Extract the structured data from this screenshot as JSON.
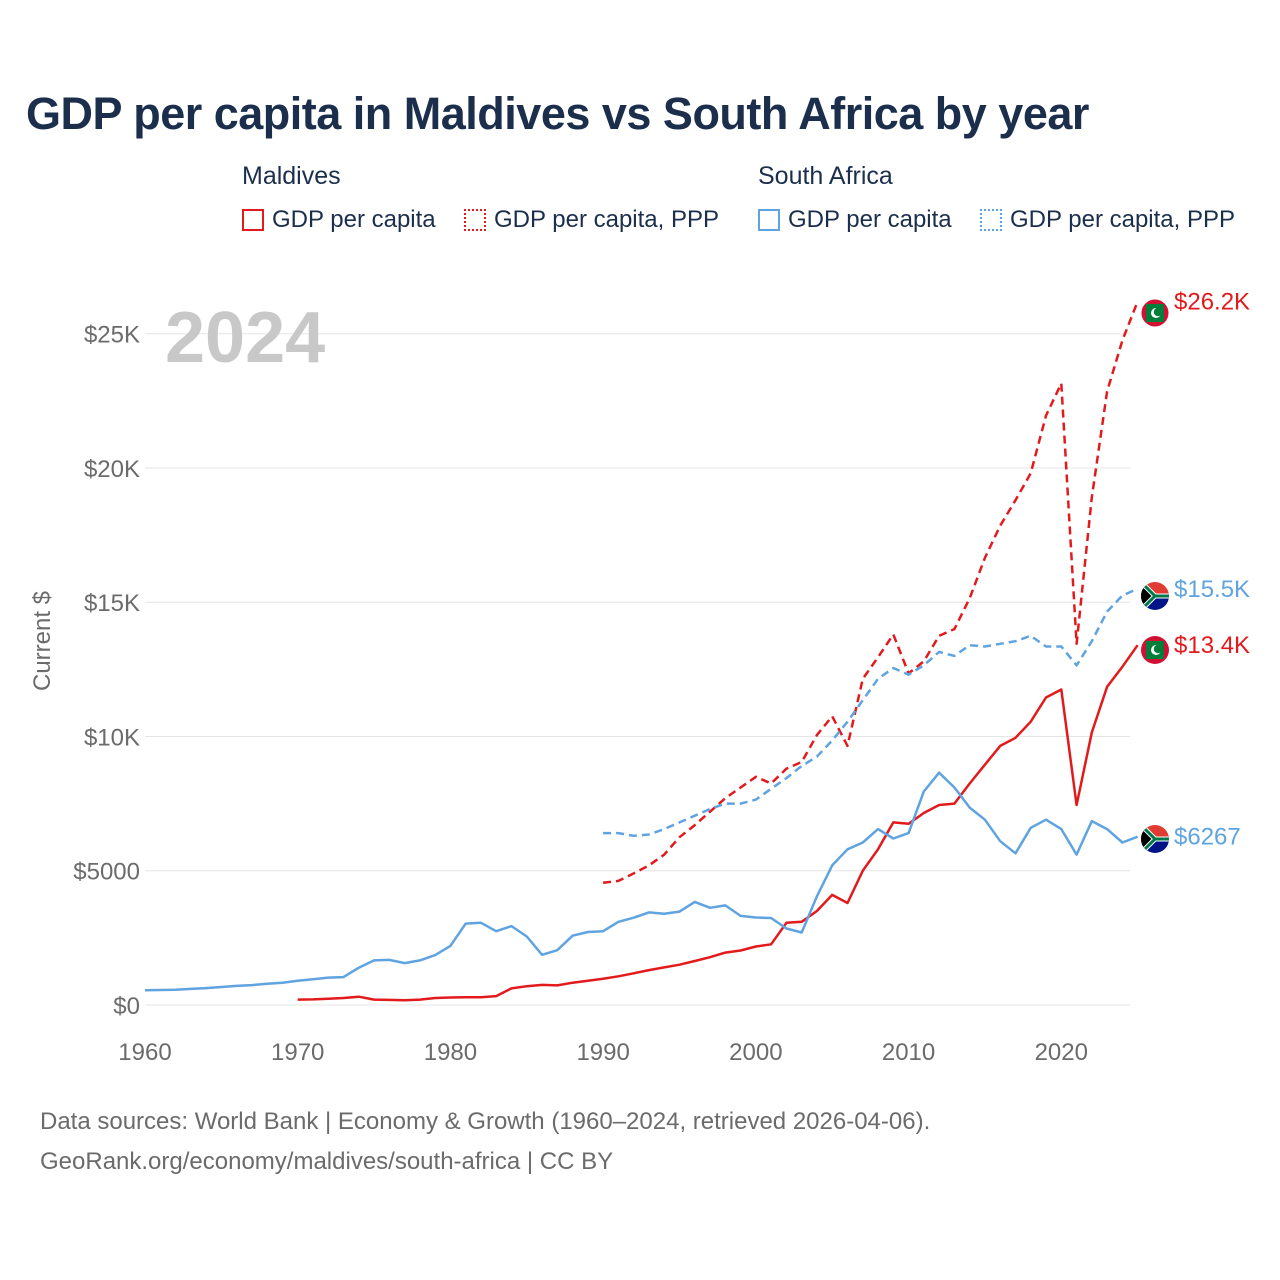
{
  "title": "GDP per capita in Maldives vs South Africa by year",
  "legend": {
    "groups": [
      {
        "name": "Maldives",
        "items": [
          {
            "label": "GDP per capita"
          },
          {
            "label": "GDP per capita, PPP"
          }
        ]
      },
      {
        "name": "South Africa",
        "items": [
          {
            "label": "GDP per capita"
          },
          {
            "label": "GDP per capita, PPP"
          }
        ]
      }
    ]
  },
  "colors": {
    "maldives": "#e31a1c",
    "south_africa": "#5fa3e0",
    "grid": "#e6e6e6",
    "axis_text": "#6b6b6b",
    "year_watermark": "#c8c8c8"
  },
  "year_watermark": "2024",
  "footer": {
    "line1": "Data sources: World Bank | Economy & Growth (1960–2024, retrieved 2026-04-06).",
    "line2": "GeoRank.org/economy/maldives/south-africa | CC BY"
  },
  "chart_data": {
    "type": "line",
    "title": "GDP per capita in Maldives vs South Africa by year",
    "xlabel": "",
    "ylabel": "Current $",
    "xlim": [
      1960,
      2024
    ],
    "ylim": [
      0,
      27000
    ],
    "x_ticks": [
      1960,
      1970,
      1980,
      1990,
      2000,
      2010,
      2020
    ],
    "y_ticks": [
      {
        "value": 0,
        "label": "$0"
      },
      {
        "value": 5000,
        "label": "$5000"
      },
      {
        "value": 10000,
        "label": "$10K"
      },
      {
        "value": 15000,
        "label": "$15K"
      },
      {
        "value": 20000,
        "label": "$20K"
      },
      {
        "value": 25000,
        "label": "$25K"
      }
    ],
    "grid": true,
    "series": [
      {
        "name": "Maldives GDP per capita",
        "country": "Maldives",
        "style": "solid",
        "end_label": "$13.4K",
        "points": [
          [
            1970,
            200
          ],
          [
            1971,
            210
          ],
          [
            1972,
            230
          ],
          [
            1973,
            260
          ],
          [
            1974,
            310
          ],
          [
            1975,
            200
          ],
          [
            1976,
            190
          ],
          [
            1977,
            180
          ],
          [
            1978,
            200
          ],
          [
            1979,
            260
          ],
          [
            1980,
            280
          ],
          [
            1981,
            290
          ],
          [
            1982,
            290
          ],
          [
            1983,
            330
          ],
          [
            1984,
            620
          ],
          [
            1985,
            700
          ],
          [
            1986,
            750
          ],
          [
            1987,
            730
          ],
          [
            1988,
            830
          ],
          [
            1989,
            900
          ],
          [
            1990,
            980
          ],
          [
            1991,
            1070
          ],
          [
            1992,
            1180
          ],
          [
            1993,
            1300
          ],
          [
            1994,
            1400
          ],
          [
            1995,
            1500
          ],
          [
            1996,
            1640
          ],
          [
            1997,
            1780
          ],
          [
            1998,
            1950
          ],
          [
            1999,
            2030
          ],
          [
            2000,
            2180
          ],
          [
            2001,
            2260
          ],
          [
            2002,
            3060
          ],
          [
            2003,
            3100
          ],
          [
            2004,
            3500
          ],
          [
            2005,
            4100
          ],
          [
            2006,
            3800
          ],
          [
            2007,
            5000
          ],
          [
            2008,
            5800
          ],
          [
            2009,
            6800
          ],
          [
            2010,
            6750
          ],
          [
            2011,
            7150
          ],
          [
            2012,
            7450
          ],
          [
            2013,
            7500
          ],
          [
            2014,
            8250
          ],
          [
            2015,
            8950
          ],
          [
            2016,
            9650
          ],
          [
            2017,
            9950
          ],
          [
            2018,
            10550
          ],
          [
            2019,
            11450
          ],
          [
            2020,
            11750
          ],
          [
            2021,
            7450
          ],
          [
            2022,
            10150
          ],
          [
            2023,
            11850
          ],
          [
            2024,
            12600
          ],
          [
            2025,
            13400
          ]
        ]
      },
      {
        "name": "Maldives GDP per capita, PPP",
        "country": "Maldives",
        "style": "dashed",
        "end_label": "$26.2K",
        "points": [
          [
            1990,
            4550
          ],
          [
            1991,
            4620
          ],
          [
            1992,
            4900
          ],
          [
            1993,
            5200
          ],
          [
            1994,
            5600
          ],
          [
            1995,
            6250
          ],
          [
            1996,
            6700
          ],
          [
            1997,
            7200
          ],
          [
            1998,
            7700
          ],
          [
            1999,
            8100
          ],
          [
            2000,
            8500
          ],
          [
            2001,
            8250
          ],
          [
            2002,
            8800
          ],
          [
            2003,
            9050
          ],
          [
            2004,
            10050
          ],
          [
            2005,
            10750
          ],
          [
            2006,
            9650
          ],
          [
            2007,
            12150
          ],
          [
            2008,
            12950
          ],
          [
            2009,
            13800
          ],
          [
            2010,
            12350
          ],
          [
            2011,
            12800
          ],
          [
            2012,
            13750
          ],
          [
            2013,
            14000
          ],
          [
            2014,
            15150
          ],
          [
            2015,
            16650
          ],
          [
            2016,
            17850
          ],
          [
            2017,
            18800
          ],
          [
            2018,
            19800
          ],
          [
            2019,
            21950
          ],
          [
            2020,
            23150
          ],
          [
            2021,
            13450
          ],
          [
            2022,
            18900
          ],
          [
            2023,
            22850
          ],
          [
            2024,
            24750
          ],
          [
            2025,
            26200
          ]
        ]
      },
      {
        "name": "South Africa GDP per capita",
        "country": "South Africa",
        "style": "solid",
        "end_label": "$6267",
        "points": [
          [
            1960,
            550
          ],
          [
            1961,
            560
          ],
          [
            1962,
            570
          ],
          [
            1963,
            600
          ],
          [
            1964,
            630
          ],
          [
            1965,
            670
          ],
          [
            1966,
            710
          ],
          [
            1967,
            740
          ],
          [
            1968,
            790
          ],
          [
            1969,
            830
          ],
          [
            1970,
            900
          ],
          [
            1971,
            960
          ],
          [
            1972,
            1020
          ],
          [
            1973,
            1040
          ],
          [
            1974,
            1390
          ],
          [
            1975,
            1660
          ],
          [
            1976,
            1680
          ],
          [
            1977,
            1560
          ],
          [
            1978,
            1660
          ],
          [
            1979,
            1860
          ],
          [
            1980,
            2200
          ],
          [
            1981,
            3030
          ],
          [
            1982,
            3060
          ],
          [
            1983,
            2750
          ],
          [
            1984,
            2940
          ],
          [
            1985,
            2550
          ],
          [
            1986,
            1870
          ],
          [
            1987,
            2040
          ],
          [
            1988,
            2580
          ],
          [
            1989,
            2720
          ],
          [
            1990,
            2750
          ],
          [
            1991,
            3100
          ],
          [
            1992,
            3250
          ],
          [
            1993,
            3450
          ],
          [
            1994,
            3400
          ],
          [
            1995,
            3480
          ],
          [
            1996,
            3840
          ],
          [
            1997,
            3620
          ],
          [
            1998,
            3710
          ],
          [
            1999,
            3320
          ],
          [
            2000,
            3260
          ],
          [
            2001,
            3240
          ],
          [
            2002,
            2850
          ],
          [
            2003,
            2700
          ],
          [
            2004,
            4050
          ],
          [
            2005,
            5200
          ],
          [
            2006,
            5800
          ],
          [
            2007,
            6050
          ],
          [
            2008,
            6550
          ],
          [
            2009,
            6200
          ],
          [
            2010,
            6400
          ],
          [
            2011,
            7950
          ],
          [
            2012,
            8650
          ],
          [
            2013,
            8100
          ],
          [
            2014,
            7350
          ],
          [
            2015,
            6900
          ],
          [
            2016,
            6100
          ],
          [
            2017,
            5650
          ],
          [
            2018,
            6600
          ],
          [
            2019,
            6900
          ],
          [
            2020,
            6550
          ],
          [
            2021,
            5600
          ],
          [
            2022,
            6850
          ],
          [
            2023,
            6550
          ],
          [
            2024,
            6050
          ],
          [
            2025,
            6267
          ]
        ]
      },
      {
        "name": "South Africa GDP per capita, PPP",
        "country": "South Africa",
        "style": "dashed",
        "end_label": "$15.5K",
        "points": [
          [
            1990,
            6400
          ],
          [
            1991,
            6400
          ],
          [
            1992,
            6300
          ],
          [
            1993,
            6350
          ],
          [
            1994,
            6550
          ],
          [
            1995,
            6800
          ],
          [
            1996,
            7050
          ],
          [
            1997,
            7300
          ],
          [
            1998,
            7500
          ],
          [
            1999,
            7500
          ],
          [
            2000,
            7650
          ],
          [
            2001,
            8050
          ],
          [
            2002,
            8450
          ],
          [
            2003,
            8900
          ],
          [
            2004,
            9250
          ],
          [
            2005,
            9850
          ],
          [
            2006,
            10550
          ],
          [
            2007,
            11350
          ],
          [
            2008,
            12150
          ],
          [
            2009,
            12550
          ],
          [
            2010,
            12300
          ],
          [
            2011,
            12650
          ],
          [
            2012,
            13150
          ],
          [
            2013,
            13000
          ],
          [
            2014,
            13400
          ],
          [
            2015,
            13350
          ],
          [
            2016,
            13450
          ],
          [
            2017,
            13550
          ],
          [
            2018,
            13750
          ],
          [
            2019,
            13350
          ],
          [
            2020,
            13350
          ],
          [
            2021,
            12650
          ],
          [
            2022,
            13550
          ],
          [
            2023,
            14650
          ],
          [
            2024,
            15250
          ],
          [
            2025,
            15500
          ]
        ]
      }
    ]
  }
}
